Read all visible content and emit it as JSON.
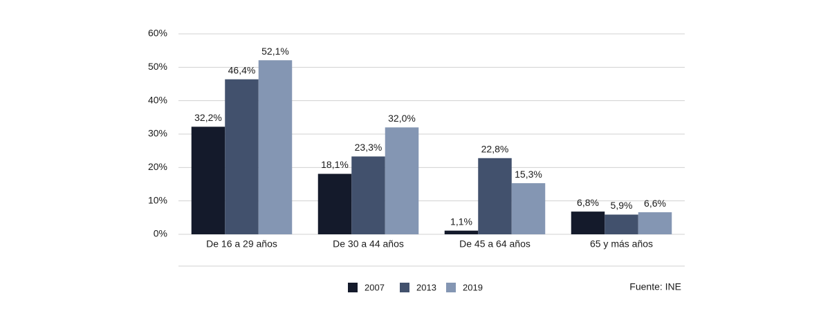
{
  "chart_data": {
    "type": "bar",
    "categories": [
      "De 16 a 29 años",
      "De 30 a 44 años",
      "De 45 a 64 años",
      "65 y más años"
    ],
    "series": [
      {
        "name": "2007",
        "color": "#141a2b",
        "values": [
          32.2,
          18.1,
          1.1,
          6.8
        ],
        "value_labels": [
          "32,2%",
          "18,1%",
          "1,1%",
          "6,8%"
        ]
      },
      {
        "name": "2013",
        "color": "#42516d",
        "values": [
          46.4,
          23.3,
          22.8,
          5.9
        ],
        "value_labels": [
          "46,4%",
          "23,3%",
          "22,8%",
          "5,9%"
        ]
      },
      {
        "name": "2019",
        "color": "#8496b3",
        "values": [
          52.1,
          32.0,
          15.3,
          6.6
        ],
        "value_labels": [
          "52,1%",
          "32,0%",
          "15,3%",
          "6,6%"
        ]
      }
    ],
    "ylim": [
      0,
      60
    ],
    "yticks": [
      {
        "value": 0,
        "label": "0%"
      },
      {
        "value": 10,
        "label": "10%"
      },
      {
        "value": 20,
        "label": "20%"
      },
      {
        "value": 30,
        "label": "30%"
      },
      {
        "value": 40,
        "label": "40%"
      },
      {
        "value": 50,
        "label": "50%"
      },
      {
        "value": 60,
        "label": "60%"
      }
    ],
    "grid": true,
    "source": "Fuente: INE"
  }
}
